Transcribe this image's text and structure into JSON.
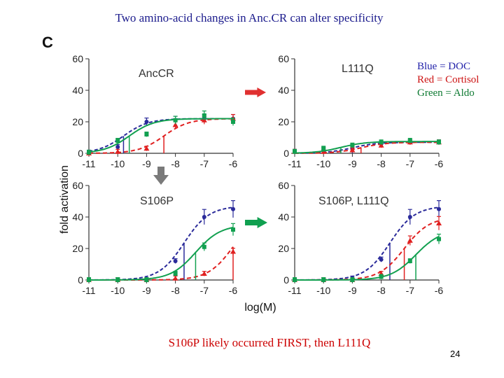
{
  "title": "Two amino-acid changes in Anc.CR can alter specificity",
  "figure_letter": "C",
  "legend": [
    {
      "text": "Blue = DOC",
      "color": "#1f1fa8"
    },
    {
      "text": "Red = Cortisol",
      "color": "#cc1111"
    },
    {
      "text": "Green = Aldo",
      "color": "#0e7a32"
    }
  ],
  "footer_note": "S106P likely occurred FIRST, then L111Q",
  "page_number": "24",
  "ylabel": "fold activation",
  "xlabel": "log(M)",
  "colors": {
    "doc": "#2a2a9a",
    "cortisol": "#e02020",
    "aldo": "#12a050",
    "arrow_red": "#e03030",
    "arrow_green": "#10a050",
    "arrow_gray": "#7a7a7a"
  },
  "chart_data": [
    {
      "type": "line",
      "title": "AncCR",
      "xlim": [
        -11,
        -6
      ],
      "ylim": [
        0,
        60
      ],
      "x_ticks": [
        "-11",
        "-10",
        "-9",
        "-8",
        "-7",
        "-6"
      ],
      "y_ticks": [
        "0",
        "20",
        "40",
        "60"
      ],
      "series": [
        {
          "key": "doc",
          "x": [
            -11,
            -10,
            -9,
            -8,
            -7,
            -6
          ],
          "y": [
            0.5,
            4,
            20,
            21,
            22,
            22
          ],
          "ec50": -9.8,
          "top": 22
        },
        {
          "key": "cortisol",
          "x": [
            -11,
            -10,
            -9,
            -8,
            -7,
            -6
          ],
          "y": [
            0,
            1,
            3,
            18,
            21,
            22
          ],
          "ec50": -8.4,
          "top": 22
        },
        {
          "key": "aldo",
          "x": [
            -11,
            -10,
            -9,
            -8,
            -7,
            -6
          ],
          "y": [
            0.5,
            8,
            12,
            21,
            24,
            20
          ],
          "ec50": -9.6,
          "top": 22
        }
      ]
    },
    {
      "type": "line",
      "title": "L111Q",
      "xlim": [
        -11,
        -6
      ],
      "ylim": [
        0,
        60
      ],
      "x_ticks": [
        "-11",
        "-10",
        "-9",
        "-8",
        "-7",
        "-6"
      ],
      "y_ticks": [
        "0",
        "20",
        "40",
        "60"
      ],
      "series": [
        {
          "key": "doc",
          "x": [
            -11,
            -10,
            -9,
            -8,
            -7,
            -6
          ],
          "y": [
            1,
            2,
            3,
            6,
            7,
            7
          ],
          "ec50": -9.0,
          "top": 7
        },
        {
          "key": "cortisol",
          "x": [
            -11,
            -10,
            -9,
            -8,
            -7,
            -6
          ],
          "y": [
            1,
            1,
            2,
            5,
            7,
            7
          ],
          "ec50": -8.7,
          "top": 7
        },
        {
          "key": "aldo",
          "x": [
            -11,
            -10,
            -9,
            -8,
            -7,
            -6
          ],
          "y": [
            1,
            3,
            5,
            7,
            8,
            7
          ],
          "ec50": -9.4,
          "top": 7.5
        }
      ]
    },
    {
      "type": "line",
      "title": "S106P",
      "xlim": [
        -11,
        -6
      ],
      "ylim": [
        0,
        60
      ],
      "x_ticks": [
        "-11",
        "-10",
        "-9",
        "-8",
        "-7",
        "-6"
      ],
      "y_ticks": [
        "0",
        "20",
        "40",
        "60"
      ],
      "series": [
        {
          "key": "doc",
          "x": [
            -11,
            -10,
            -9,
            -8,
            -7,
            -6
          ],
          "y": [
            0,
            0,
            0,
            12,
            40,
            45
          ],
          "ec50": -7.7,
          "top": 47
        },
        {
          "key": "cortisol",
          "x": [
            -11,
            -10,
            -9,
            -8,
            -7,
            -6
          ],
          "y": [
            0,
            0,
            0,
            1,
            4,
            18
          ],
          "ec50": -6.0,
          "top": 42
        },
        {
          "key": "aldo",
          "x": [
            -11,
            -10,
            -9,
            -8,
            -7,
            -6
          ],
          "y": [
            0,
            0,
            0,
            4,
            21,
            32
          ],
          "ec50": -7.3,
          "top": 35
        }
      ]
    },
    {
      "type": "line",
      "title": "S106P, L111Q",
      "xlim": [
        -11,
        -6
      ],
      "ylim": [
        0,
        60
      ],
      "x_ticks": [
        "-11",
        "-10",
        "-9",
        "-8",
        "-7",
        "-6"
      ],
      "y_ticks": [
        "0",
        "20",
        "40",
        "60"
      ],
      "series": [
        {
          "key": "doc",
          "x": [
            -11,
            -10,
            -9,
            -8,
            -7,
            -6
          ],
          "y": [
            0,
            0,
            1,
            13,
            40,
            45
          ],
          "ec50": -7.7,
          "top": 47
        },
        {
          "key": "cortisol",
          "x": [
            -11,
            -10,
            -9,
            -8,
            -7,
            -6
          ],
          "y": [
            0,
            0,
            0,
            4,
            25,
            36
          ],
          "ec50": -7.2,
          "top": 40
        },
        {
          "key": "aldo",
          "x": [
            -11,
            -10,
            -9,
            -8,
            -7,
            -6
          ],
          "y": [
            0,
            0,
            0,
            2,
            12,
            26
          ],
          "ec50": -6.8,
          "top": 32
        }
      ]
    }
  ]
}
